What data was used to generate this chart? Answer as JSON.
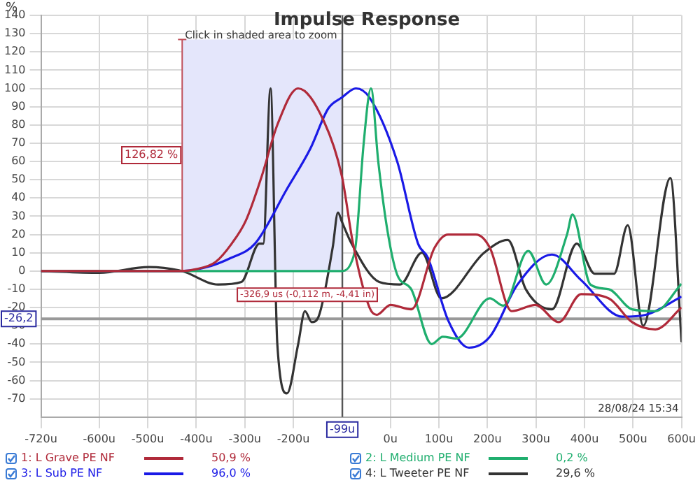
{
  "chart_data": {
    "type": "line",
    "title": "Impulse Response",
    "ylabel": "%",
    "xlim": [
      -720,
      600
    ],
    "ylim": [
      -80,
      140
    ],
    "xticks": [
      {
        "value": -720,
        "label": "-720u"
      },
      {
        "value": -600,
        "label": "-600u"
      },
      {
        "value": -500,
        "label": "-500u"
      },
      {
        "value": -400,
        "label": "-400u"
      },
      {
        "value": -300,
        "label": "-300u"
      },
      {
        "value": -200,
        "label": "-200u"
      },
      {
        "value": 0,
        "label": "0u"
      },
      {
        "value": 100,
        "label": "100u"
      },
      {
        "value": 200,
        "label": "200u"
      },
      {
        "value": 300,
        "label": "300u"
      },
      {
        "value": 400,
        "label": "400u"
      },
      {
        "value": 500,
        "label": "500u"
      },
      {
        "value": 600,
        "label": "600u"
      }
    ],
    "yticks": [
      -70,
      -60,
      -50,
      -40,
      -30,
      -20,
      -10,
      0,
      10,
      20,
      30,
      40,
      50,
      60,
      70,
      80,
      90,
      100,
      110,
      120,
      130,
      140
    ],
    "grid": true,
    "legend": "bottom",
    "marker": "none",
    "line_style": "solid",
    "series": [
      {
        "name": "1: L Grave PE NF",
        "color": "#b02a3a",
        "x": [
          -720,
          -500,
          -430,
          -400,
          -360,
          -327,
          -298,
          -265,
          -233,
          -190,
          -137,
          -100,
          -77,
          -43,
          -28,
          0,
          43,
          91,
          119,
          176,
          205,
          250,
          299,
          347,
          393,
          450,
          498,
          546,
          600
        ],
        "values": [
          0,
          0,
          0,
          1,
          5,
          15,
          27.5,
          52,
          80,
          100,
          82,
          52,
          15,
          -20,
          -24,
          -18.6,
          -21,
          12.7,
          20,
          20,
          12.7,
          -22,
          -18.6,
          -28,
          -12.7,
          -15,
          -28,
          -32,
          -20
        ]
      },
      {
        "name": "2: L Medium PE NF",
        "color": "#1fae6e",
        "x": [
          -720,
          -400,
          -120,
          -99,
          -80,
          -71,
          -55,
          -40,
          -25,
          -6,
          14,
          43,
          85,
          108,
          136,
          205,
          233,
          284,
          321,
          364,
          375,
          412,
          450,
          498,
          546,
          600
        ],
        "values": [
          0,
          0,
          0,
          0,
          5,
          15,
          70,
          100,
          60,
          22,
          -2,
          -10,
          -40,
          -36,
          -37,
          -15,
          -19,
          11,
          -7.4,
          20,
          31,
          -7.4,
          -10,
          -21,
          -22,
          -7
        ]
      },
      {
        "name": "3: L Sub PE NF",
        "color": "#1a1ae6",
        "x": [
          -720,
          -430,
          -380,
          -330,
          -279,
          -213,
          -165,
          -128,
          -100,
          -71,
          -43,
          14,
          57,
          77,
          119,
          162,
          205,
          262,
          333,
          393,
          478,
          526,
          600
        ],
        "values": [
          0,
          0,
          2,
          7,
          15,
          45,
          67,
          89,
          95,
          100,
          95,
          60,
          15,
          7.4,
          -27,
          -42,
          -36,
          -7.4,
          9,
          -5,
          -25,
          -24,
          -14
        ]
      },
      {
        "name": "4: L Tweeter PE NF",
        "color": "#333333",
        "x": [
          -720,
          -600,
          -498,
          -430,
          -355,
          -307,
          -270,
          -262,
          -247,
          -233,
          -213,
          -190,
          -176,
          -162,
          -148,
          -119,
          -108,
          -100,
          -80,
          -23,
          20,
          65,
          105,
          193,
          242,
          279,
          333,
          384,
          421,
          461,
          489,
          521,
          577,
          600
        ],
        "values": [
          0,
          -1,
          2.2,
          0,
          -7.4,
          -6,
          15,
          15,
          100,
          -40,
          -67,
          -40,
          -22,
          -28,
          -25,
          12.7,
          32,
          27,
          15,
          -6,
          -7.4,
          10,
          -15,
          10,
          17,
          -10,
          -21,
          15,
          -1.5,
          -1.5,
          25,
          -30,
          51,
          -39
        ]
      }
    ],
    "bands": [
      {
        "axis": "x",
        "from": -429,
        "to": -99,
        "color": "#e4e6fb"
      }
    ],
    "ref_lines": [
      {
        "axis": "x",
        "value": -99,
        "label": "-99u",
        "color": "#555555"
      },
      {
        "axis": "y",
        "value": -26.2,
        "label": "-26,2",
        "color": "#999999"
      }
    ],
    "annotations": [
      "50,9 %",
      "0,2 %",
      "96,0 %",
      "29,6 %",
      {
        "text": "Click in shaded area to zoom",
        "x": -429,
        "y": 126.82
      },
      "126,82 %",
      {
        "text": "-326,9 us (-0,112 m, -4,41 in)",
        "x": -326.9,
        "y": 0
      },
      "28/08/24 15:34"
    ]
  }
}
